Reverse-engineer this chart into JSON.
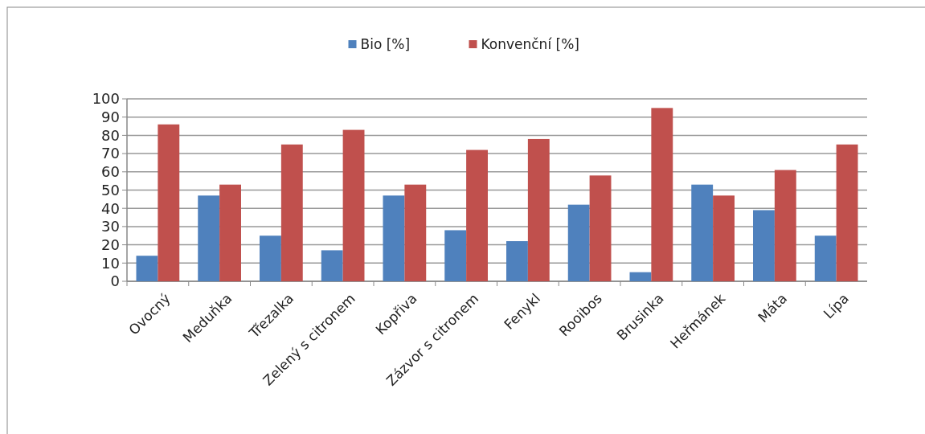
{
  "chart_data": {
    "type": "bar",
    "categories": [
      "Ovocný",
      "Meduňka",
      "Třezalka",
      "Zelený s citronem",
      "Kopřiva",
      "Zázvor s citronem",
      "Fenykl",
      "Rooibos",
      "Brusinka",
      "Heřmánek",
      "Máta",
      "Lípa"
    ],
    "series": [
      {
        "name": "Bio [%]",
        "color": "#4f81bd",
        "values": [
          14,
          47,
          25,
          17,
          47,
          28,
          22,
          42,
          5,
          53,
          39,
          25
        ]
      },
      {
        "name": "Konvenční [%]",
        "color": "#c0504d",
        "values": [
          86,
          53,
          75,
          83,
          53,
          72,
          78,
          58,
          95,
          47,
          61,
          75
        ]
      }
    ],
    "ylim": [
      0,
      100
    ],
    "yticks": [
      0,
      10,
      20,
      30,
      40,
      50,
      60,
      70,
      80,
      90,
      100
    ],
    "grid": "y",
    "legend": "top"
  }
}
